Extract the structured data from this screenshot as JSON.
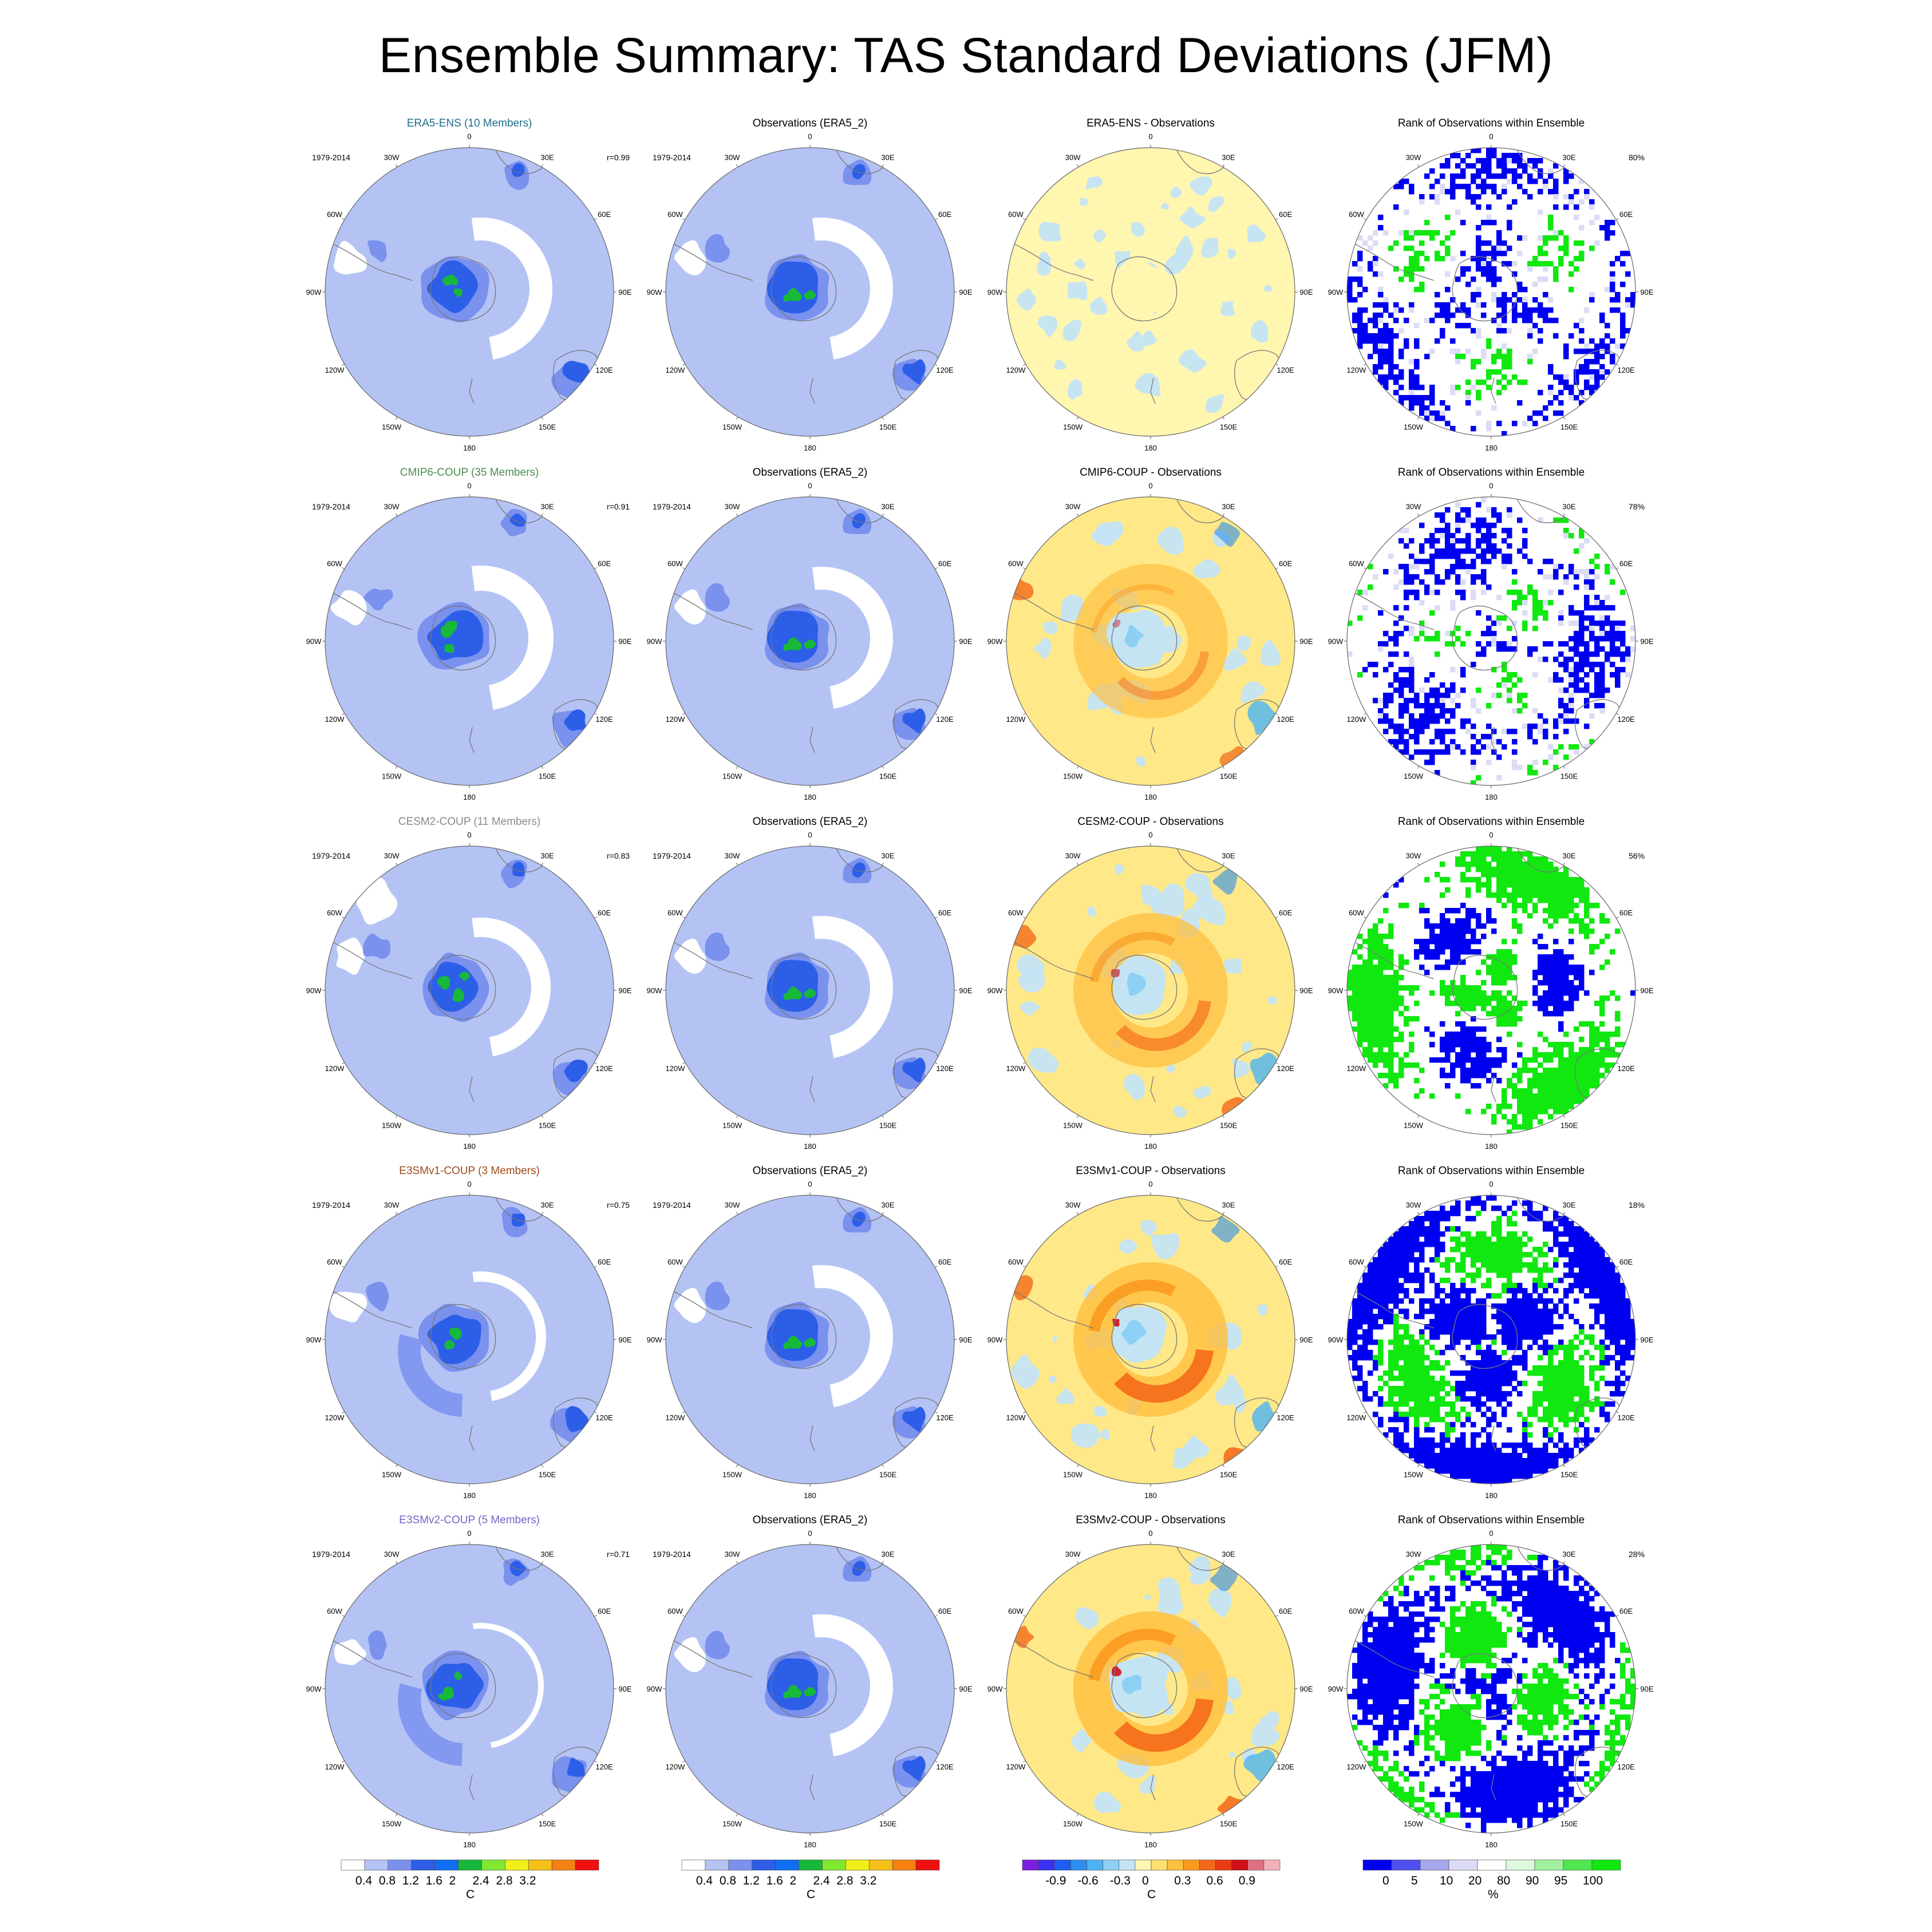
{
  "title": "Ensemble Summary: TAS Standard Deviations (JFM)",
  "period_label": "1979-2014",
  "longitude_labels": [
    "0",
    "30E",
    "60E",
    "90E",
    "120E",
    "150E",
    "180",
    "150W",
    "120W",
    "90W",
    "60W",
    "30W"
  ],
  "observations_title": "Observations (ERA5_2)",
  "rank_title": "Rank of Observations within Ensemble",
  "rows": [
    {
      "ensemble_title": "ERA5-ENS (10 Members)",
      "title_color": "#1f6e88",
      "correlation": "r=0.99",
      "diff_title": "ERA5-ENS - Observations",
      "rank_percent": "80%"
    },
    {
      "ensemble_title": "CMIP6-COUP (35 Members)",
      "title_color": "#4d8e4d",
      "correlation": "r=0.91",
      "diff_title": "CMIP6-COUP - Observations",
      "rank_percent": "78%"
    },
    {
      "ensemble_title": "CESM2-COUP (11 Members)",
      "title_color": "#8a8a8a",
      "correlation": "r=0.83",
      "diff_title": "CESM2-COUP - Observations",
      "rank_percent": "56%"
    },
    {
      "ensemble_title": "E3SMv1-COUP (3 Members)",
      "title_color": "#a04a1a",
      "correlation": "r=0.75",
      "diff_title": "E3SMv1-COUP - Observations",
      "rank_percent": "18%"
    },
    {
      "ensemble_title": "E3SMv2-COUP (5 Members)",
      "title_color": "#7a62c8",
      "correlation": "r=0.71",
      "diff_title": "E3SMv2-COUP - Observations",
      "rank_percent": "28%"
    }
  ],
  "colorbars": [
    {
      "unit": "C",
      "ticks": [
        "0.4",
        "0.8",
        "1.2",
        "1.6",
        "2",
        "2.4",
        "2.8",
        "3.2"
      ],
      "colors": [
        "#ffffff",
        "#b4c3f4",
        "#7a91ee",
        "#2c5ee8",
        "#0f6ef2",
        "#18b83a",
        "#80e830",
        "#f0f018",
        "#f6c018",
        "#f68010",
        "#f01010"
      ]
    },
    {
      "unit": "C",
      "ticks": [
        "0.4",
        "0.8",
        "1.2",
        "1.6",
        "2",
        "2.4",
        "2.8",
        "3.2"
      ],
      "colors": [
        "#ffffff",
        "#b4c3f4",
        "#7a91ee",
        "#2c5ee8",
        "#0f6ef2",
        "#18b83a",
        "#80e830",
        "#f0f018",
        "#f6c018",
        "#f68010",
        "#f01010"
      ]
    },
    {
      "unit": "C",
      "ticks": [
        "-0.9",
        "-0.6",
        "-0.3",
        "0",
        "0.3",
        "0.6",
        "0.9"
      ],
      "colors": [
        "#7a1fe0",
        "#3a30f0",
        "#1c5ef4",
        "#2c8ef0",
        "#4cb4f4",
        "#8cd0f4",
        "#c4e4f4",
        "#fff6b0",
        "#ffe070",
        "#ffc040",
        "#fb9a20",
        "#f46a18",
        "#ea3c14",
        "#d0101a",
        "#e07080",
        "#f4b0b8"
      ]
    },
    {
      "unit": "%",
      "ticks": [
        "0",
        "5",
        "10",
        "20",
        "80",
        "90",
        "95",
        "100"
      ],
      "colors": [
        "#0000f0",
        "#5050f0",
        "#a8a8f0",
        "#dcdcf6",
        "#ffffff",
        "#ddf8dd",
        "#a0f0a0",
        "#50e850",
        "#10e810"
      ]
    }
  ]
}
